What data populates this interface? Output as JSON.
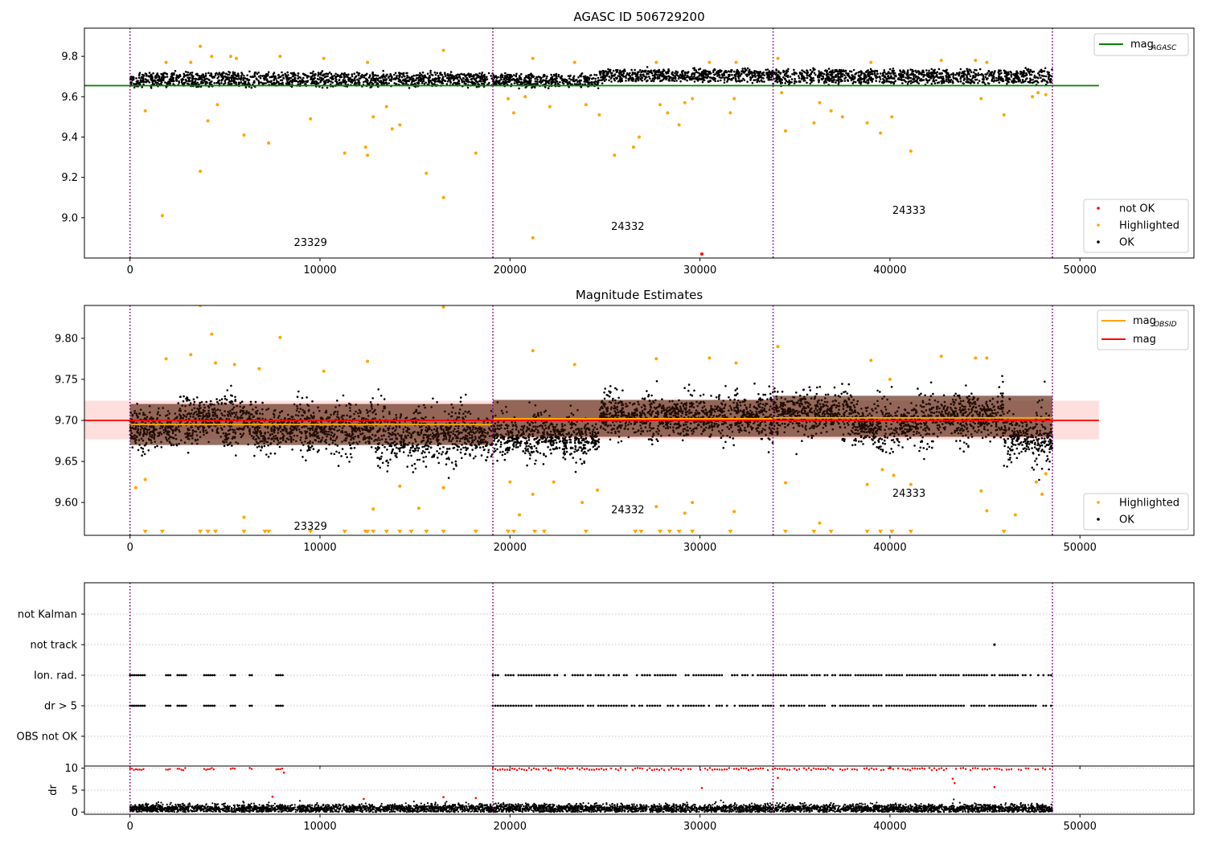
{
  "chart_data": [
    {
      "type": "scatter",
      "title": "AGASC ID 506729200",
      "xlim": [
        -2400,
        56000
      ],
      "ylim": [
        8.8,
        9.94
      ],
      "xticks": [
        0,
        10000,
        20000,
        30000,
        40000,
        50000
      ],
      "yticks": [
        9.0,
        9.2,
        9.4,
        9.6,
        9.8
      ],
      "ytick_labels": [
        "9.0",
        "9.2",
        "9.4",
        "9.6",
        "9.8"
      ],
      "grid": false,
      "obsid_boundaries": [
        0,
        19100,
        33850,
        48550
      ],
      "obsid_labels": [
        {
          "text": "23329",
          "x": 9500,
          "y": 8.86
        },
        {
          "text": "24332",
          "x": 26200,
          "y": 8.94
        },
        {
          "text": "24333",
          "x": 41000,
          "y": 9.02
        }
      ],
      "reference_line": {
        "name": "mag_AGASC",
        "y": 9.655,
        "x_range": [
          -2400,
          51000
        ],
        "color": "#008000"
      },
      "ok_band": [
        {
          "x": [
            0,
            19100
          ],
          "center": 9.685,
          "spread": 0.035
        },
        {
          "x": [
            19100,
            24700
          ],
          "center": 9.68,
          "spread": 0.03
        },
        {
          "x": [
            24700,
            33850
          ],
          "center": 9.705,
          "spread": 0.03
        },
        {
          "x": [
            33850,
            48550
          ],
          "center": 9.7,
          "spread": 0.035
        }
      ],
      "highlighted_points": [
        [
          3700,
          9.85
        ],
        [
          16500,
          9.83
        ],
        [
          4300,
          9.8
        ],
        [
          7900,
          9.8
        ],
        [
          5300,
          9.8
        ],
        [
          21200,
          9.79
        ],
        [
          800,
          9.53
        ],
        [
          6000,
          9.41
        ],
        [
          7300,
          9.37
        ],
        [
          9500,
          9.49
        ],
        [
          11300,
          9.32
        ],
        [
          12400,
          9.35
        ],
        [
          12500,
          9.31
        ],
        [
          12800,
          9.5
        ],
        [
          13500,
          9.55
        ],
        [
          13800,
          9.44
        ],
        [
          14200,
          9.46
        ],
        [
          15600,
          9.22
        ],
        [
          16500,
          9.1
        ],
        [
          18200,
          9.32
        ],
        [
          4600,
          9.56
        ],
        [
          3700,
          9.23
        ],
        [
          1700,
          9.01
        ],
        [
          4100,
          9.48
        ],
        [
          21200,
          8.9
        ],
        [
          19900,
          9.59
        ],
        [
          20200,
          9.52
        ],
        [
          20800,
          9.6
        ],
        [
          22100,
          9.55
        ],
        [
          24000,
          9.56
        ],
        [
          24700,
          9.51
        ],
        [
          25500,
          9.31
        ],
        [
          26500,
          9.35
        ],
        [
          26800,
          9.4
        ],
        [
          27900,
          9.56
        ],
        [
          28300,
          9.52
        ],
        [
          28900,
          9.46
        ],
        [
          29200,
          9.57
        ],
        [
          29600,
          9.59
        ],
        [
          31600,
          9.52
        ],
        [
          31800,
          9.59
        ],
        [
          34300,
          9.62
        ],
        [
          34500,
          9.43
        ],
        [
          36000,
          9.47
        ],
        [
          36300,
          9.57
        ],
        [
          36900,
          9.53
        ],
        [
          37500,
          9.5
        ],
        [
          38800,
          9.47
        ],
        [
          39500,
          9.42
        ],
        [
          40100,
          9.5
        ],
        [
          41100,
          9.33
        ],
        [
          44800,
          9.59
        ],
        [
          46000,
          9.51
        ],
        [
          47500,
          9.6
        ],
        [
          47800,
          9.62
        ],
        [
          48200,
          9.61
        ],
        [
          10200,
          9.79
        ],
        [
          12500,
          9.77
        ],
        [
          23400,
          9.77
        ],
        [
          27700,
          9.77
        ],
        [
          30500,
          9.77
        ],
        [
          31900,
          9.77
        ],
        [
          34100,
          9.79
        ],
        [
          39000,
          9.77
        ],
        [
          42700,
          9.78
        ],
        [
          44500,
          9.78
        ],
        [
          45100,
          9.77
        ],
        [
          1900,
          9.77
        ],
        [
          3200,
          9.77
        ],
        [
          5600,
          9.79
        ]
      ],
      "not_ok_points": [
        [
          30100,
          8.82
        ]
      ],
      "legend": {
        "top": [
          {
            "label": "mag",
            "sub": "AGASC",
            "color": "#008000",
            "kind": "line"
          }
        ],
        "bottom": [
          {
            "label": "not OK",
            "color": "#ff0000",
            "kind": "dot"
          },
          {
            "label": "Highlighted",
            "color": "#ffa500",
            "kind": "dot"
          },
          {
            "label": "OK",
            "color": "#000000",
            "kind": "dot"
          }
        ]
      }
    },
    {
      "type": "scatter",
      "title": "Magnitude Estimates",
      "xlim": [
        -2400,
        56000
      ],
      "ylim": [
        9.56,
        9.84
      ],
      "xticks": [
        0,
        10000,
        20000,
        30000,
        40000,
        50000
      ],
      "yticks": [
        9.6,
        9.65,
        9.7,
        9.75,
        9.8
      ],
      "ytick_labels": [
        "9.60",
        "9.65",
        "9.70",
        "9.75",
        "9.80"
      ],
      "grid": false,
      "obsid_boundaries": [
        0,
        19100,
        33850,
        48550
      ],
      "obsid_labels": [
        {
          "text": "23329",
          "x": 9500,
          "y": 9.567
        },
        {
          "text": "24332",
          "x": 26200,
          "y": 9.587
        },
        {
          "text": "24333",
          "x": 41000,
          "y": 9.607
        }
      ],
      "mag_line": {
        "name": "mag",
        "y": 9.7,
        "x_range": [
          -2400,
          51000
        ],
        "color": "#ff0000",
        "band": [
          9.677,
          9.724
        ]
      },
      "mag_obsid": [
        {
          "x": [
            0,
            19100
          ],
          "y": 9.695,
          "band": [
            9.67,
            9.72
          ]
        },
        {
          "x": [
            19100,
            33850
          ],
          "y": 9.702,
          "band": [
            9.68,
            9.725
          ]
        },
        {
          "x": [
            33850,
            48550
          ],
          "y": 9.703,
          "band": [
            9.68,
            9.73
          ]
        }
      ],
      "ok_segments": [
        {
          "x": [
            0,
            2500
          ],
          "center": 9.69,
          "spread": 0.035
        },
        {
          "x": [
            2500,
            6500
          ],
          "center": 9.7,
          "spread": 0.04
        },
        {
          "x": [
            6500,
            13000
          ],
          "center": 9.69,
          "spread": 0.04
        },
        {
          "x": [
            13000,
            15500
          ],
          "center": 9.68,
          "spread": 0.045
        },
        {
          "x": [
            15500,
            19100
          ],
          "center": 9.68,
          "spread": 0.045
        },
        {
          "x": [
            19100,
            24700
          ],
          "center": 9.68,
          "spread": 0.035
        },
        {
          "x": [
            24700,
            33850
          ],
          "center": 9.705,
          "spread": 0.035
        },
        {
          "x": [
            33850,
            38000
          ],
          "center": 9.71,
          "spread": 0.035
        },
        {
          "x": [
            38000,
            42000
          ],
          "center": 9.695,
          "spread": 0.04
        },
        {
          "x": [
            42000,
            46000
          ],
          "center": 9.705,
          "spread": 0.04
        },
        {
          "x": [
            46000,
            48550
          ],
          "center": 9.68,
          "spread": 0.04
        }
      ],
      "highlighted_points": [
        [
          3700,
          9.84
        ],
        [
          16500,
          9.838
        ],
        [
          4300,
          9.805
        ],
        [
          7900,
          9.801
        ],
        [
          21200,
          9.785
        ],
        [
          1900,
          9.775
        ],
        [
          3200,
          9.78
        ],
        [
          4500,
          9.77
        ],
        [
          5500,
          9.768
        ],
        [
          6800,
          9.763
        ],
        [
          10200,
          9.76
        ],
        [
          12500,
          9.772
        ],
        [
          23400,
          9.768
        ],
        [
          27700,
          9.775
        ],
        [
          30500,
          9.776
        ],
        [
          31900,
          9.77
        ],
        [
          34100,
          9.79
        ],
        [
          39000,
          9.773
        ],
        [
          42700,
          9.778
        ],
        [
          44500,
          9.776
        ],
        [
          45100,
          9.776
        ],
        [
          40000,
          9.75
        ],
        [
          800,
          9.628
        ],
        [
          300,
          9.618
        ],
        [
          6000,
          9.582
        ],
        [
          12800,
          9.592
        ],
        [
          14200,
          9.62
        ],
        [
          15200,
          9.593
        ],
        [
          16500,
          9.618
        ],
        [
          20000,
          9.625
        ],
        [
          20500,
          9.585
        ],
        [
          21200,
          9.61
        ],
        [
          22300,
          9.625
        ],
        [
          23800,
          9.6
        ],
        [
          24600,
          9.615
        ],
        [
          27700,
          9.595
        ],
        [
          29200,
          9.587
        ],
        [
          29600,
          9.6
        ],
        [
          31800,
          9.589
        ],
        [
          34500,
          9.624
        ],
        [
          36300,
          9.575
        ],
        [
          38800,
          9.622
        ],
        [
          39600,
          9.64
        ],
        [
          40200,
          9.633
        ],
        [
          41100,
          9.622
        ],
        [
          44800,
          9.614
        ],
        [
          45100,
          9.59
        ],
        [
          46600,
          9.585
        ],
        [
          47700,
          9.625
        ],
        [
          48000,
          9.61
        ],
        [
          48200,
          9.635
        ]
      ],
      "lower_limit_markers": [
        800,
        1700,
        3700,
        4100,
        4500,
        6000,
        7100,
        7300,
        9500,
        11300,
        12400,
        12500,
        12800,
        13500,
        14200,
        14800,
        15600,
        16500,
        18200,
        19900,
        20200,
        21300,
        21800,
        24000,
        26600,
        26900,
        27900,
        28400,
        28900,
        29600,
        31600,
        34500,
        36000,
        36900,
        38800,
        39500,
        40100,
        41100,
        46000
      ],
      "legend": {
        "top": [
          {
            "label": "mag",
            "sub": "OBSID",
            "color": "#ffa500",
            "kind": "line"
          },
          {
            "label": "mag",
            "sub": "",
            "color": "#ff0000",
            "kind": "line"
          }
        ],
        "bottom": [
          {
            "label": "Highlighted",
            "color": "#ffa500",
            "kind": "dot"
          },
          {
            "label": "OK",
            "color": "#000000",
            "kind": "dot"
          }
        ]
      }
    },
    {
      "type": "scatter",
      "title": "",
      "xlim": [
        -2400,
        56000
      ],
      "xticks": [
        0,
        10000,
        20000,
        30000,
        40000,
        50000
      ],
      "grid": true,
      "obsid_boundaries": [
        0,
        19100,
        33850,
        48550
      ],
      "flag_labels": [
        "not Kalman",
        "not track",
        "Ion. rad.",
        "dr > 5",
        "OBS not OK"
      ],
      "flag_rows": {
        "not track": [
          [
            45500,
            45550
          ]
        ],
        "Ion. rad.": [
          [
            0,
            800
          ],
          [
            1900,
            2200
          ],
          [
            2500,
            3000
          ],
          [
            3900,
            4500
          ],
          [
            5300,
            5600
          ],
          [
            6300,
            6500
          ],
          [
            7700,
            8100
          ],
          [
            19100,
            48550
          ]
        ],
        "dr > 5": [
          [
            0,
            800
          ],
          [
            1900,
            2200
          ],
          [
            2500,
            3000
          ],
          [
            3900,
            4500
          ],
          [
            5300,
            5600
          ],
          [
            6300,
            6500
          ],
          [
            7700,
            8100
          ],
          [
            19100,
            48550
          ]
        ]
      }
    },
    {
      "type": "scatter",
      "title": "",
      "ylabel": "dr",
      "xlim": [
        -2400,
        56000
      ],
      "ylim": [
        -0.5,
        10.5
      ],
      "xticks": [
        0,
        10000,
        20000,
        30000,
        40000,
        50000
      ],
      "yticks": [
        0,
        5,
        10
      ],
      "ytick_labels": [
        "0",
        "5",
        "10"
      ],
      "grid": true,
      "obsid_boundaries": [
        0,
        19100,
        33850,
        48550
      ],
      "dr_low_band": {
        "center": 0.8,
        "spread": 0.7
      },
      "dr_high_clusters": [
        [
          0,
          800
        ],
        [
          1900,
          2200
        ],
        [
          2500,
          3000
        ],
        [
          3900,
          4500
        ],
        [
          5300,
          5600
        ],
        [
          6300,
          6500
        ],
        [
          7700,
          8100
        ],
        [
          19100,
          48550
        ]
      ],
      "dr_high_value": 9.8,
      "dr_scattered_red": [
        [
          8100,
          9.0
        ],
        [
          30100,
          5.5
        ],
        [
          33800,
          5.2
        ],
        [
          34100,
          7.8
        ],
        [
          43300,
          7.6
        ],
        [
          43400,
          6.6
        ],
        [
          45500,
          5.7
        ],
        [
          7500,
          3.5
        ],
        [
          12300,
          3.0
        ],
        [
          16500,
          3.4
        ],
        [
          18200,
          3.2
        ]
      ]
    }
  ],
  "x_ticks_labels": [
    "0",
    "10000",
    "20000",
    "30000",
    "40000",
    "50000"
  ]
}
